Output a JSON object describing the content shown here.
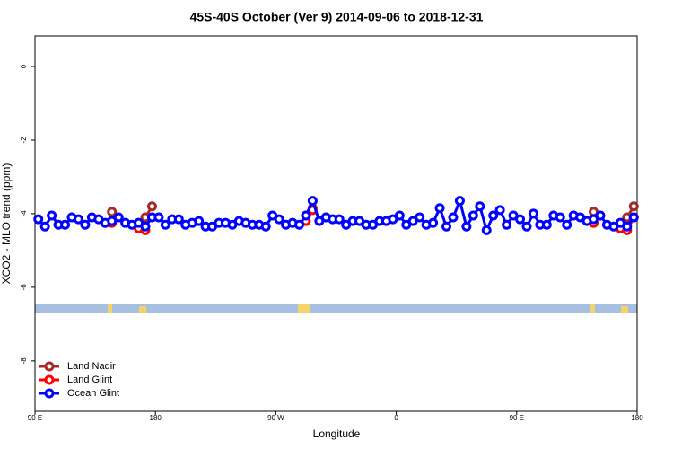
{
  "chart_data": {
    "type": "line",
    "title": "45S-40S October (Ver 9)   2014-09-06 to 2018-12-31",
    "x_label": "Longitude",
    "y_label": "XCO2 - MLO trend (ppm)",
    "x": [
      92.5,
      97.5,
      102.5,
      107.5,
      112.5,
      117.5,
      122.5,
      127.5,
      132.5,
      137.5,
      142.5,
      147.5,
      152.5,
      157.5,
      162.5,
      167.5,
      172.5,
      177.5,
      182.5,
      187.5,
      192.5,
      197.5,
      202.5,
      207.5,
      212.5,
      217.5,
      222.5,
      227.5,
      232.5,
      237.5,
      242.5,
      247.5,
      252.5,
      257.5,
      262.5,
      267.5,
      272.5,
      277.5,
      282.5,
      287.5,
      292.5,
      297.5,
      302.5,
      307.5,
      312.5,
      317.5,
      322.5,
      327.5,
      332.5,
      337.5,
      342.5,
      347.5,
      352.5,
      357.5,
      362.5,
      367.5,
      372.5,
      377.5,
      382.5,
      387.5,
      392.5,
      397.5,
      402.5,
      407.5,
      412.5,
      417.5,
      422.5,
      427.5,
      432.5,
      437.5,
      442.5,
      447.5,
      452.5,
      457.5,
      462.5,
      467.5,
      472.5,
      477.5,
      482.5,
      487.5,
      492.5,
      497.5,
      502.5,
      507.5,
      512.5,
      517.5,
      522.5,
      527.5,
      532.5,
      537.5
    ],
    "series": [
      {
        "name": "Land Nadir",
        "color": "#a52a2a",
        "values": [
          null,
          null,
          null,
          null,
          null,
          null,
          null,
          null,
          null,
          null,
          null,
          -3.95,
          null,
          null,
          null,
          null,
          -4.1,
          -3.8,
          null,
          null,
          null,
          null,
          null,
          null,
          null,
          null,
          null,
          null,
          null,
          null,
          null,
          null,
          null,
          null,
          null,
          null,
          null,
          null,
          null,
          null,
          null,
          -3.85,
          null,
          null,
          null,
          null,
          null,
          null,
          null,
          null,
          null,
          null,
          null,
          null,
          null,
          null,
          null,
          null,
          null,
          null,
          null,
          null,
          null,
          null,
          null,
          null,
          null,
          null,
          null,
          null,
          null,
          null,
          null,
          null,
          null,
          null,
          null,
          null,
          null,
          null,
          null,
          null,
          null,
          -3.95,
          null,
          null,
          null,
          null,
          -4.1,
          -3.8
        ]
      },
      {
        "name": "Land Glint",
        "color": "#ff0000",
        "values": [
          null,
          null,
          null,
          null,
          null,
          null,
          null,
          null,
          null,
          null,
          null,
          -4.25,
          null,
          null,
          null,
          -4.4,
          -4.45,
          null,
          null,
          null,
          null,
          null,
          null,
          null,
          null,
          null,
          null,
          null,
          null,
          null,
          null,
          null,
          null,
          null,
          null,
          null,
          null,
          null,
          null,
          null,
          -4.2,
          -3.9,
          null,
          null,
          null,
          null,
          null,
          null,
          null,
          null,
          null,
          null,
          null,
          null,
          null,
          null,
          null,
          null,
          null,
          null,
          null,
          null,
          null,
          null,
          null,
          null,
          null,
          null,
          null,
          null,
          null,
          null,
          null,
          null,
          null,
          null,
          null,
          null,
          null,
          null,
          null,
          null,
          null,
          -4.25,
          null,
          null,
          null,
          -4.4,
          -4.45,
          -4.1
        ]
      },
      {
        "name": "Ocean Glint",
        "color": "#0000ff",
        "values": [
          -4.15,
          -4.35,
          -4.05,
          -4.3,
          -4.3,
          -4.1,
          -4.15,
          -4.3,
          -4.1,
          -4.15,
          -4.25,
          -4.2,
          -4.1,
          -4.25,
          -4.3,
          -4.25,
          -4.35,
          -4.1,
          -4.1,
          -4.3,
          -4.15,
          -4.15,
          -4.3,
          -4.25,
          -4.2,
          -4.35,
          -4.35,
          -4.25,
          -4.25,
          -4.3,
          -4.2,
          -4.25,
          -4.3,
          -4.3,
          -4.35,
          -4.05,
          -4.15,
          -4.3,
          -4.25,
          -4.3,
          -4.05,
          -3.65,
          -4.2,
          -4.1,
          -4.15,
          -4.15,
          -4.3,
          -4.2,
          -4.2,
          -4.3,
          -4.3,
          -4.2,
          -4.2,
          -4.15,
          -4.05,
          -4.3,
          -4.2,
          -4.1,
          -4.3,
          -4.25,
          -3.85,
          -4.35,
          -4.1,
          -3.65,
          -4.35,
          -4.05,
          -3.8,
          -4.45,
          -4.05,
          -3.9,
          -4.3,
          -4.05,
          -4.15,
          -4.35,
          -4.0,
          -4.3,
          -4.3,
          -4.05,
          -4.1,
          -4.3,
          -4.05,
          -4.1,
          -4.2,
          -4.15,
          -4.05,
          -4.3,
          -4.35,
          -4.25,
          -4.35,
          -4.1
        ]
      }
    ],
    "xlim": [
      90,
      540
    ],
    "xticks": [
      {
        "value": 90,
        "label": "90 E"
      },
      180,
      {
        "value": 270,
        "label": "90 W"
      },
      {
        "value": 360,
        "label": "0"
      },
      {
        "value": 450,
        "label": "90 E"
      },
      {
        "value": 540,
        "label": "180"
      }
    ],
    "ylim": [
      -9.37,
      0.83
    ],
    "yticks": [
      0,
      -2,
      -4,
      -6,
      -8
    ],
    "legend": "bottom-left"
  }
}
